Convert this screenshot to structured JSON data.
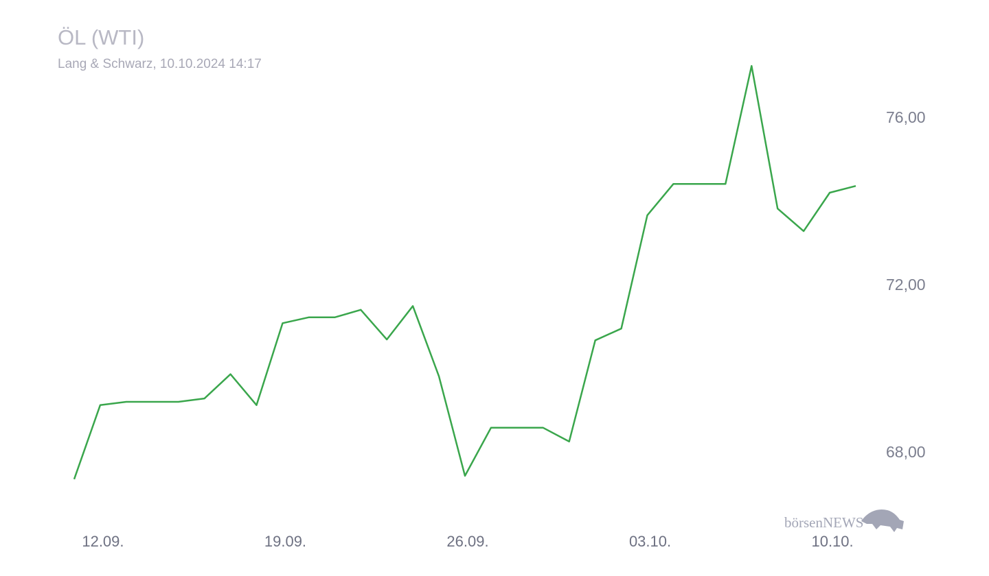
{
  "chart_data": {
    "type": "line",
    "title": "ÖL (WTI)",
    "subtitle": "Lang & Schwarz, 10.10.2024 14:17",
    "watermark": "börsenNEWS",
    "categories": [
      null,
      "12.09.",
      null,
      null,
      null,
      null,
      null,
      null,
      "19.09.",
      null,
      null,
      null,
      null,
      null,
      null,
      "26.09.",
      null,
      null,
      null,
      null,
      null,
      null,
      "03.10.",
      null,
      null,
      null,
      null,
      null,
      null,
      "10.10.",
      null
    ],
    "series": [
      {
        "color": "#3aa64c",
        "values": [
          67.38,
          69.15,
          69.23,
          69.23,
          69.23,
          69.31,
          69.89,
          69.15,
          71.11,
          71.25,
          71.25,
          71.43,
          70.72,
          71.52,
          69.84,
          67.46,
          68.61,
          68.61,
          68.61,
          68.28,
          70.7,
          70.98,
          73.69,
          74.44,
          74.44,
          74.44,
          77.26,
          73.85,
          73.31,
          74.23,
          74.39
        ]
      }
    ],
    "ylim": [
      66.5,
      77.5
    ],
    "yticks": [
      {
        "value": 68,
        "label": "68,00"
      },
      {
        "value": 72,
        "label": "72,00"
      },
      {
        "value": 76,
        "label": "76,00"
      }
    ],
    "grid": false
  }
}
